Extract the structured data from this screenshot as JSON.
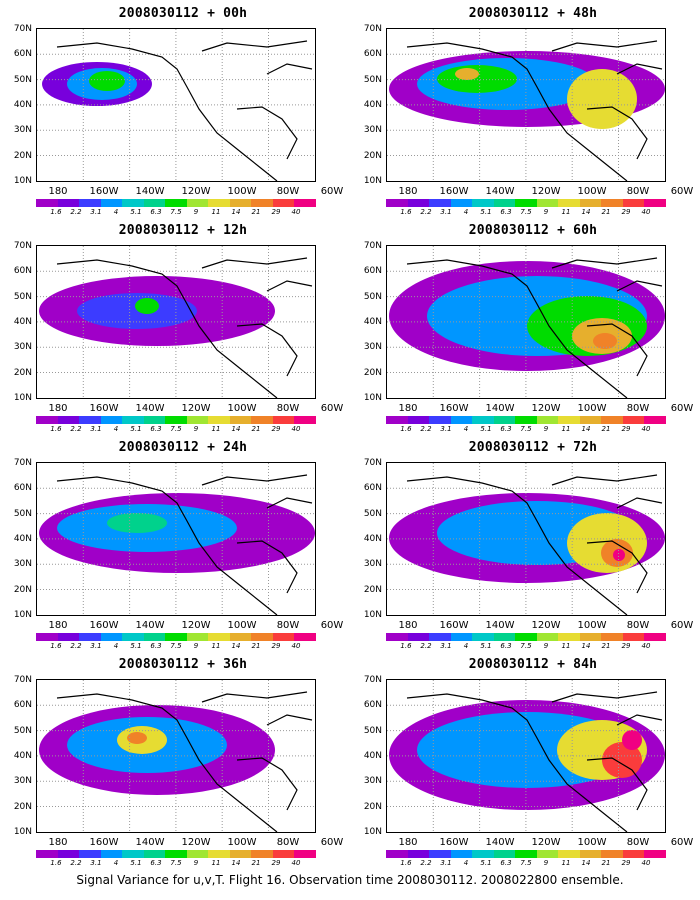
{
  "panels": [
    {
      "title": "2008030112 + 00h"
    },
    {
      "title": "2008030112 + 48h"
    },
    {
      "title": "2008030112 + 12h"
    },
    {
      "title": "2008030112 + 60h"
    },
    {
      "title": "2008030112 + 24h"
    },
    {
      "title": "2008030112 + 72h"
    },
    {
      "title": "2008030112 + 36h"
    },
    {
      "title": "2008030112 + 84h"
    }
  ],
  "axes": {
    "y_ticks": [
      "70N",
      "60N",
      "50N",
      "40N",
      "30N",
      "20N",
      "10N"
    ],
    "x_ticks": [
      "180",
      "160W",
      "140W",
      "120W",
      "100W",
      "80W",
      "60W"
    ]
  },
  "colorbar": {
    "labels": [
      "1.6",
      "2.2",
      "3.1",
      "4",
      "5.1",
      "6.3",
      "7.5",
      "9",
      "11",
      "14",
      "21",
      "29",
      "40"
    ],
    "colors": [
      "#a000c8",
      "#7800dc",
      "#3c3cff",
      "#0096ff",
      "#00c8c8",
      "#00d28c",
      "#00dc00",
      "#a0e632",
      "#e6dc32",
      "#e6af2d",
      "#f08228",
      "#fa3c3c",
      "#f00082"
    ]
  },
  "footer": "Signal Variance for u,v,T. Flight 16. Observation time 2008030112. 2008022800 ensemble."
}
